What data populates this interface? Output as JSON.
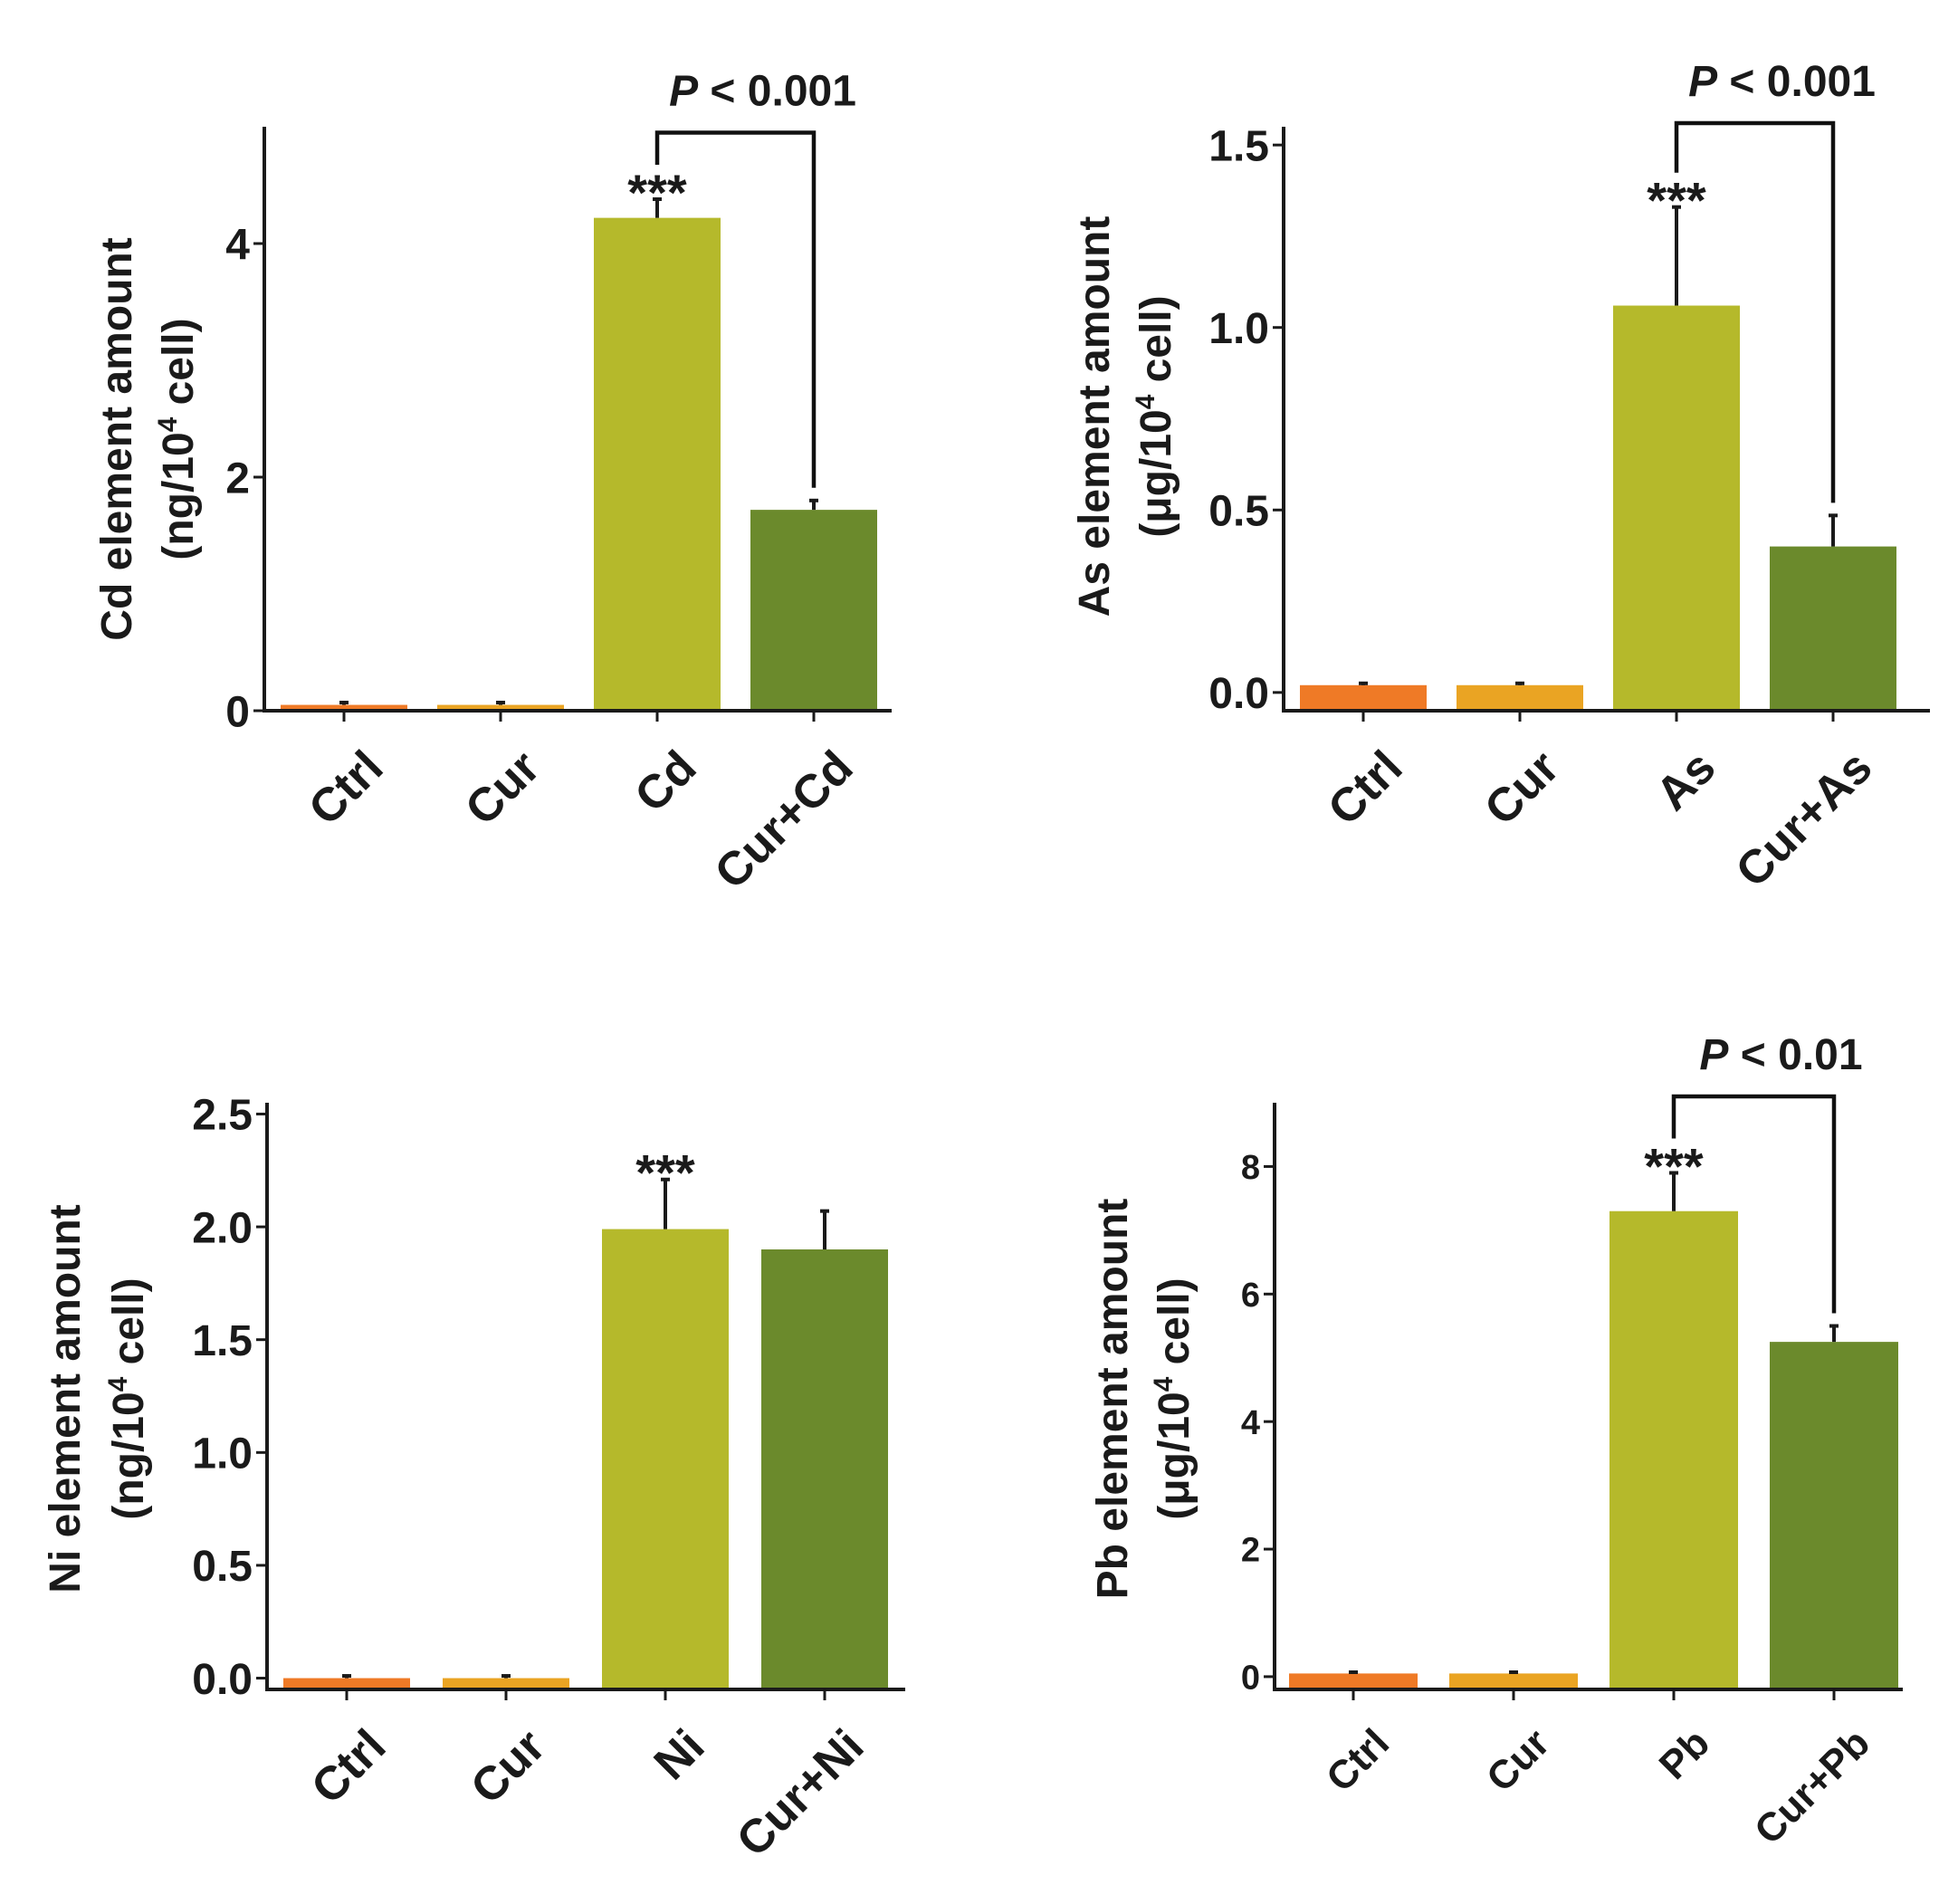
{
  "chart_data": [
    {
      "type": "bar",
      "panel": "top-left",
      "categories": [
        "Ctrl",
        "Cur",
        "Cd",
        "Cur+Cd"
      ],
      "values": [
        0.05,
        0.05,
        4.22,
        1.72
      ],
      "errors": [
        0.02,
        0.02,
        0.16,
        0.08
      ],
      "colors": [
        "#ef7a26",
        "#eaa423",
        "#b5b92b",
        "#6b8a2c"
      ],
      "ylabel_line1": "Cd element amount",
      "ylabel_line2_prefix": "(ng/10",
      "ylabel_line2_sup": "4",
      "ylabel_line2_suffix": " cell)",
      "ylim": [
        0,
        5
      ],
      "yticks": [
        0,
        2,
        4
      ],
      "ytick_labels": [
        "0",
        "2",
        "4"
      ],
      "star_label": "***",
      "star_bar": 2,
      "p_label_italic": "P",
      "p_label_rest": " < 0.001",
      "bracket": [
        2,
        3
      ],
      "bracket_level": 4.95
    },
    {
      "type": "bar",
      "panel": "top-right",
      "categories": [
        "Ctrl",
        "Cur",
        "As",
        "Cur+As"
      ],
      "values": [
        0.02,
        0.02,
        1.06,
        0.4
      ],
      "errors": [
        0.005,
        0.005,
        0.27,
        0.085
      ],
      "colors": [
        "#ef7a26",
        "#eaa423",
        "#b5b92b",
        "#6b8a2c"
      ],
      "ylabel_line1": "As element amount",
      "ylabel_line2_prefix": "(μg/10",
      "ylabel_line2_sup": "4",
      "ylabel_line2_suffix": " cell)",
      "ylim": [
        -0.05,
        1.55
      ],
      "yticks": [
        0.0,
        0.5,
        1.0,
        1.5
      ],
      "ytick_labels": [
        "0.0",
        "0.5",
        "1.0",
        "1.5"
      ],
      "star_label": "***",
      "star_bar": 2,
      "p_label_italic": "P",
      "p_label_rest": " < 0.001",
      "bracket": [
        2,
        3
      ],
      "bracket_level": 1.56
    },
    {
      "type": "bar",
      "panel": "bottom-left",
      "categories": [
        "Ctrl",
        "Cur",
        "Ni",
        "Cur+Ni"
      ],
      "values": [
        0.0,
        0.0,
        1.99,
        1.9
      ],
      "errors": [
        0.01,
        0.01,
        0.22,
        0.17
      ],
      "colors": [
        "#ef7a26",
        "#eaa423",
        "#b5b92b",
        "#6b8a2c"
      ],
      "ylabel_line1": "Ni element amount",
      "ylabel_line2_prefix": "(ng/10",
      "ylabel_line2_sup": "4",
      "ylabel_line2_suffix": " cell)",
      "ylim": [
        -0.05,
        2.55
      ],
      "yticks": [
        0.0,
        0.5,
        1.0,
        1.5,
        2.0,
        2.5
      ],
      "ytick_labels": [
        "0.0",
        "0.5",
        "1.0",
        "1.5",
        "2.0",
        "2.5"
      ],
      "star_label": "***",
      "star_bar": 2
    },
    {
      "type": "bar",
      "panel": "bottom-right",
      "categories": [
        "Ctrl",
        "Cur",
        "Pb",
        "Cur+Pb"
      ],
      "values": [
        0.05,
        0.05,
        7.3,
        5.25
      ],
      "errors": [
        0.02,
        0.02,
        0.6,
        0.25
      ],
      "colors": [
        "#ef7a26",
        "#eaa423",
        "#b5b92b",
        "#6b8a2c"
      ],
      "ylabel_line1": "Pb element amount",
      "ylabel_line2_prefix": "(μg/10",
      "ylabel_line2_sup": "4",
      "ylabel_line2_suffix": " cell)",
      "ylim": [
        -0.2,
        9
      ],
      "yticks": [
        0,
        2,
        4,
        6,
        8
      ],
      "ytick_labels": [
        "0",
        "2",
        "4",
        "6",
        "8"
      ],
      "star_label": "***",
      "star_bar": 2,
      "p_label_italic": "P",
      "p_label_rest": " < 0.01",
      "bracket": [
        2,
        3
      ],
      "bracket_level": 9.1
    }
  ]
}
